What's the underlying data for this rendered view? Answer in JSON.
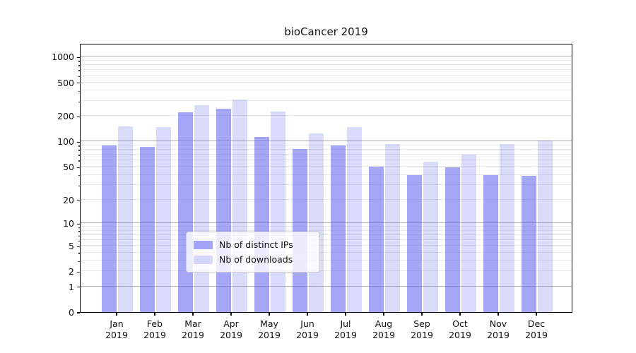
{
  "figure": {
    "title": "bioCancer 2019",
    "background_color": "#ffffff"
  },
  "chart_data": {
    "type": "bar",
    "title": "bioCancer 2019",
    "categories": [
      "Jan 2019",
      "Feb 2019",
      "Mar 2019",
      "Apr 2019",
      "May 2019",
      "Jun 2019",
      "Jul 2019",
      "Aug 2019",
      "Sep 2019",
      "Oct 2019",
      "Nov 2019",
      "Dec 2019"
    ],
    "x_tick_months": [
      "Jan",
      "Feb",
      "Mar",
      "Apr",
      "May",
      "Jun",
      "Jul",
      "Aug",
      "Sep",
      "Oct",
      "Nov",
      "Dec"
    ],
    "x_tick_year": "2019",
    "series": [
      {
        "name": "Nb of distinct IPs",
        "color": "rgba(107,107,241,0.60)",
        "values": [
          90,
          86,
          221,
          245,
          113,
          82,
          89,
          50,
          40,
          49,
          40,
          39
        ]
      },
      {
        "name": "Nb of downloads",
        "color": "rgba(107,107,241,0.25)",
        "values": [
          151,
          147,
          268,
          316,
          225,
          125,
          148,
          93,
          57,
          70,
          94,
          103
        ]
      }
    ],
    "xlabel": "",
    "ylabel": "",
    "y_scale": "log10(1+v)",
    "y_axis_ticks": [
      1000,
      500,
      200,
      100,
      50,
      20,
      10,
      5,
      2,
      1,
      0
    ],
    "y_major_grid_values": [
      1,
      10,
      100,
      1000
    ],
    "y_minor_grid_values": [
      2,
      3,
      4,
      5,
      6,
      7,
      8,
      9,
      20,
      30,
      40,
      50,
      60,
      70,
      80,
      90,
      200,
      300,
      400,
      500,
      600,
      700,
      800,
      900
    ],
    "ylim_top_value": 1446,
    "grid": "on",
    "legend_position": "lower center",
    "colors": {
      "major_grid": "#b0b0b0",
      "minor_grid": "#e7e7e7",
      "axis_border": "#000000",
      "text": "#111111",
      "legend_border": "#cccccc"
    }
  }
}
